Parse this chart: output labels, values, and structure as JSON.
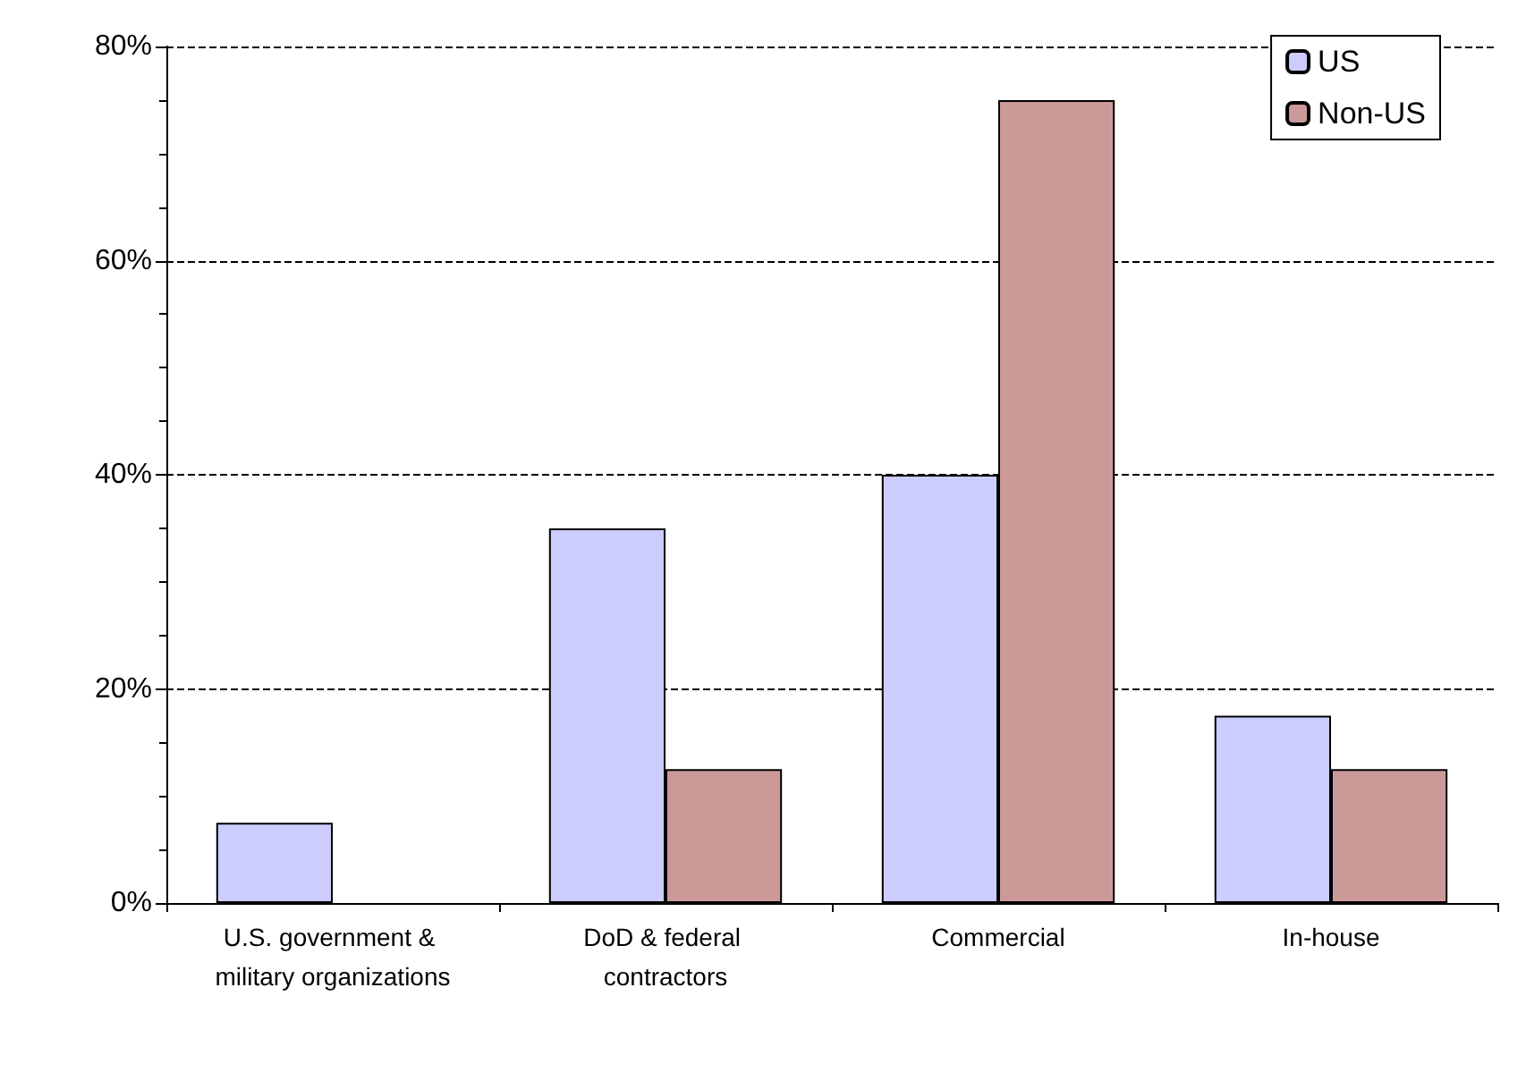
{
  "chart_data": {
    "type": "bar",
    "categories": [
      "U.S. government & military organizations",
      "DoD & federal contractors",
      "Commercial",
      "In-house"
    ],
    "series": [
      {
        "name": "US",
        "color": "#ccccff",
        "values": [
          7.5,
          35,
          40,
          17.5
        ]
      },
      {
        "name": "Non-US",
        "color": "#cc9999",
        "values": [
          null,
          12.5,
          75,
          12.5
        ]
      }
    ],
    "ylim": [
      0,
      80
    ],
    "yticks": [
      {
        "value": 0,
        "label": "0%"
      },
      {
        "value": 20,
        "label": "20%"
      },
      {
        "value": 40,
        "label": "40%"
      },
      {
        "value": 60,
        "label": "60%"
      },
      {
        "value": 80,
        "label": "80%"
      }
    ],
    "grid": "y",
    "legend": "top right"
  }
}
